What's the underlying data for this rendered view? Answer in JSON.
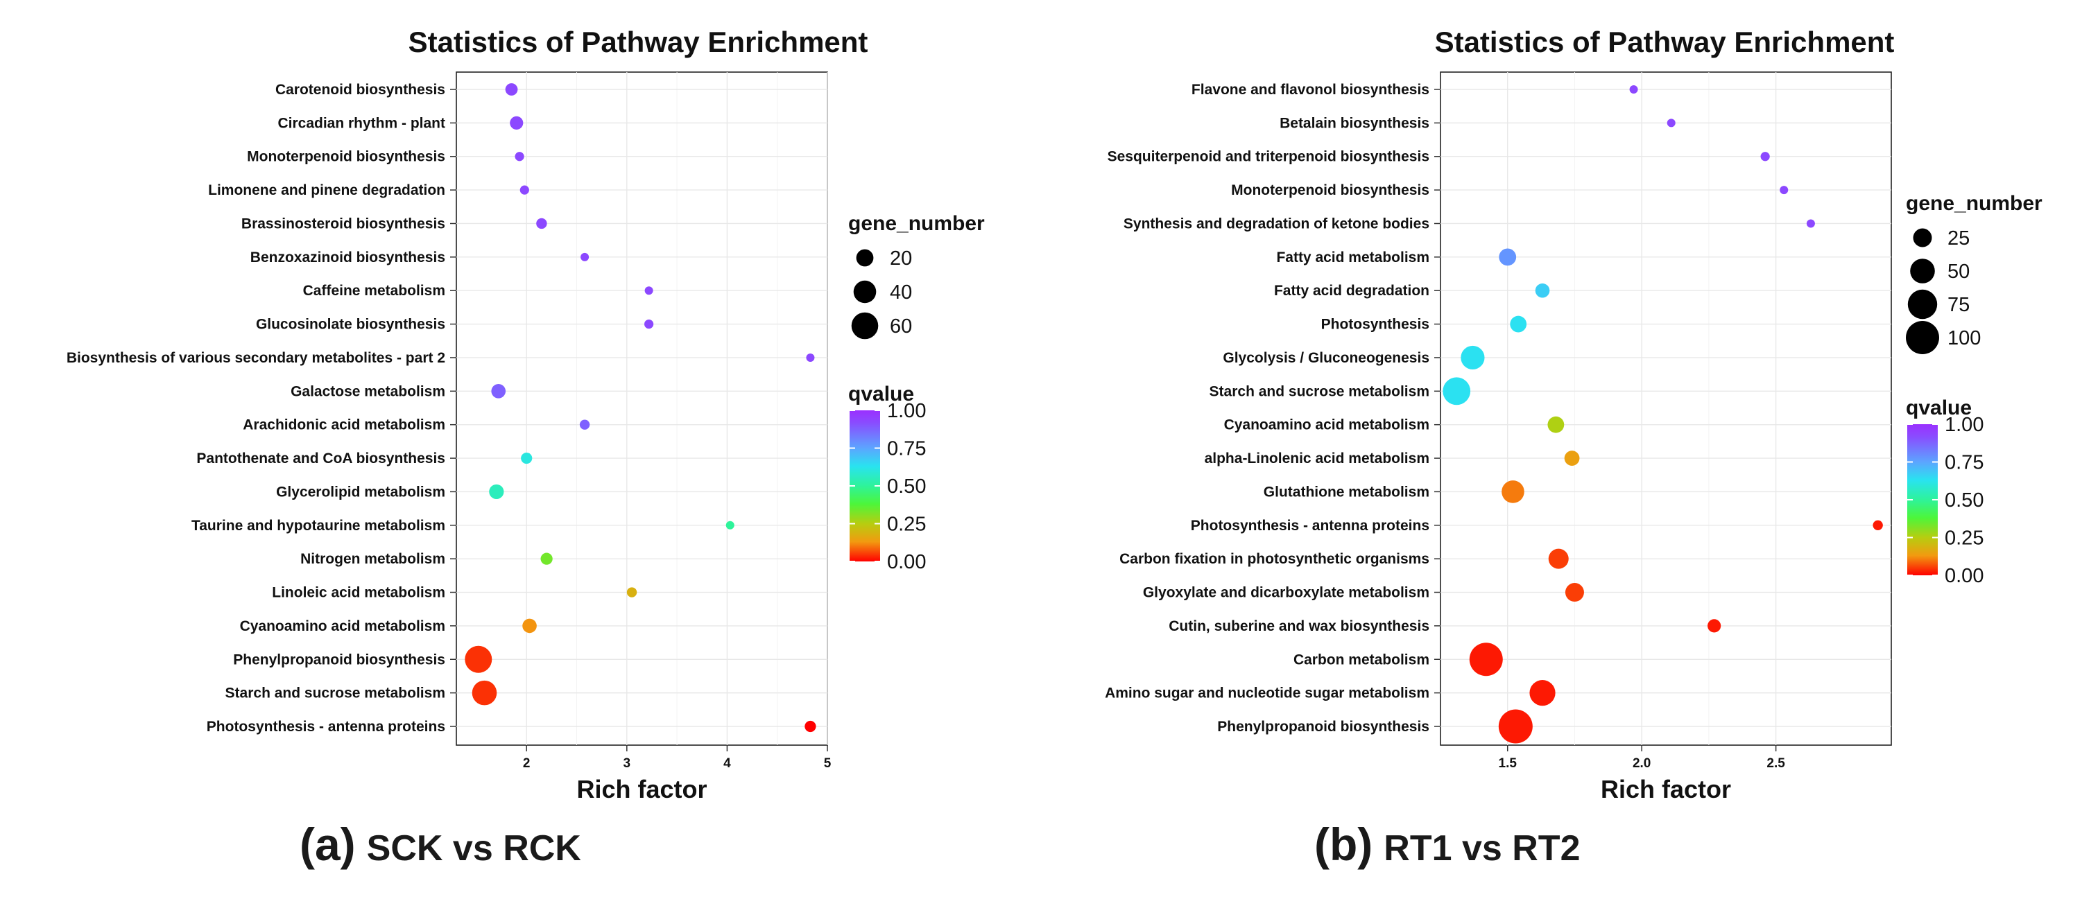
{
  "panels": [
    {
      "label": "(a)",
      "comparison": "SCK  vs RCK"
    },
    {
      "label": "(b)",
      "comparison": "RT1 vs RT2"
    }
  ],
  "chart_data": [
    {
      "type": "scatter",
      "title": "Statistics of Pathway Enrichment",
      "xlabel": "Rich factor",
      "ylabel": "",
      "xlim": [
        1.3,
        5.0
      ],
      "xticks": [
        2,
        3,
        4,
        5
      ],
      "xtick_labels": [
        "2",
        "3",
        "4",
        "5"
      ],
      "grid": true,
      "size_legend": {
        "title": "gene_number",
        "values": [
          20,
          40,
          60
        ],
        "labels": [
          "20",
          "40",
          "60"
        ]
      },
      "color_legend": {
        "title": "qvalue",
        "range": [
          0,
          1
        ],
        "ticks": [
          1.0,
          0.75,
          0.5,
          0.25,
          0.0
        ],
        "labels": [
          "1.00",
          "0.75",
          "0.50",
          "0.25",
          "0.00"
        ]
      },
      "points": [
        {
          "pathway": "Carotenoid biosynthesis",
          "rich_factor": 1.85,
          "gene_number": 8,
          "qvalue": 0.93
        },
        {
          "pathway": "Circadian rhythm - plant",
          "rich_factor": 1.9,
          "gene_number": 10,
          "qvalue": 0.93
        },
        {
          "pathway": "Monoterpenoid biosynthesis",
          "rich_factor": 1.93,
          "gene_number": 3,
          "qvalue": 0.93
        },
        {
          "pathway": "Limonene and pinene degradation",
          "rich_factor": 1.98,
          "gene_number": 3,
          "qvalue": 0.93
        },
        {
          "pathway": "Brassinosteroid biosynthesis",
          "rich_factor": 2.15,
          "gene_number": 5,
          "qvalue": 0.93
        },
        {
          "pathway": "Benzoxazinoid biosynthesis",
          "rich_factor": 2.58,
          "gene_number": 2,
          "qvalue": 0.93
        },
        {
          "pathway": "Caffeine metabolism",
          "rich_factor": 3.22,
          "gene_number": 2,
          "qvalue": 0.93
        },
        {
          "pathway": "Glucosinolate biosynthesis",
          "rich_factor": 3.22,
          "gene_number": 3,
          "qvalue": 0.93
        },
        {
          "pathway": "Biosynthesis of various secondary metabolites - part 2",
          "rich_factor": 4.83,
          "gene_number": 2,
          "qvalue": 0.93
        },
        {
          "pathway": "Galactose metabolism",
          "rich_factor": 1.72,
          "gene_number": 12,
          "qvalue": 0.88
        },
        {
          "pathway": "Arachidonic acid metabolism",
          "rich_factor": 2.58,
          "gene_number": 4,
          "qvalue": 0.88
        },
        {
          "pathway": "Pantothenate and CoA biosynthesis",
          "rich_factor": 2.0,
          "gene_number": 6,
          "qvalue": 0.6
        },
        {
          "pathway": "Glycerolipid metabolism",
          "rich_factor": 1.7,
          "gene_number": 13,
          "qvalue": 0.55
        },
        {
          "pathway": "Taurine and hypotaurine metabolism",
          "rich_factor": 4.03,
          "gene_number": 2,
          "qvalue": 0.5
        },
        {
          "pathway": "Nitrogen metabolism",
          "rich_factor": 2.2,
          "gene_number": 7,
          "qvalue": 0.33
        },
        {
          "pathway": "Linoleic acid metabolism",
          "rich_factor": 3.05,
          "gene_number": 4,
          "qvalue": 0.18
        },
        {
          "pathway": "Cyanoamino acid metabolism",
          "rich_factor": 2.03,
          "gene_number": 12,
          "qvalue": 0.12
        },
        {
          "pathway": "Phenylpropanoid biosynthesis",
          "rich_factor": 1.52,
          "gene_number": 62,
          "qvalue": 0.04
        },
        {
          "pathway": "Starch and sucrose metabolism",
          "rich_factor": 1.58,
          "gene_number": 50,
          "qvalue": 0.04
        },
        {
          "pathway": "Photosynthesis - antenna proteins",
          "rich_factor": 4.83,
          "gene_number": 6,
          "qvalue": 0.0
        }
      ]
    },
    {
      "type": "scatter",
      "title": "Statistics of Pathway Enrichment",
      "xlabel": "Rich factor",
      "ylabel": "",
      "xlim": [
        1.25,
        2.93
      ],
      "xticks": [
        1.5,
        2.0,
        2.5
      ],
      "xtick_labels": [
        "1.5",
        "2.0",
        "2.5"
      ],
      "grid": true,
      "size_legend": {
        "title": "gene_number",
        "values": [
          25,
          50,
          75,
          100
        ],
        "labels": [
          "25",
          "50",
          "75",
          "100"
        ]
      },
      "color_legend": {
        "title": "qvalue",
        "range": [
          0,
          1
        ],
        "ticks": [
          1.0,
          0.75,
          0.5,
          0.25,
          0.0
        ],
        "labels": [
          "1.00",
          "0.75",
          "0.50",
          "0.25",
          "0.00"
        ]
      },
      "points": [
        {
          "pathway": "Flavone and flavonol biosynthesis",
          "rich_factor": 1.97,
          "gene_number": 2,
          "qvalue": 0.93
        },
        {
          "pathway": "Betalain biosynthesis",
          "rich_factor": 2.11,
          "gene_number": 2,
          "qvalue": 0.93
        },
        {
          "pathway": "Sesquiterpenoid and triterpenoid biosynthesis",
          "rich_factor": 2.46,
          "gene_number": 3,
          "qvalue": 0.93
        },
        {
          "pathway": "Monoterpenoid biosynthesis",
          "rich_factor": 2.53,
          "gene_number": 2,
          "qvalue": 0.93
        },
        {
          "pathway": "Synthesis and degradation of ketone bodies",
          "rich_factor": 2.63,
          "gene_number": 2,
          "qvalue": 0.93
        },
        {
          "pathway": "Fatty acid metabolism",
          "rich_factor": 1.5,
          "gene_number": 20,
          "qvalue": 0.78
        },
        {
          "pathway": "Fatty acid degradation",
          "rich_factor": 1.63,
          "gene_number": 12,
          "qvalue": 0.67
        },
        {
          "pathway": "Photosynthesis",
          "rich_factor": 1.54,
          "gene_number": 18,
          "qvalue": 0.63
        },
        {
          "pathway": "Glycolysis / Gluconeogenesis",
          "rich_factor": 1.37,
          "gene_number": 45,
          "qvalue": 0.63
        },
        {
          "pathway": "Starch and sucrose metabolism",
          "rich_factor": 1.31,
          "gene_number": 65,
          "qvalue": 0.63
        },
        {
          "pathway": "Cyanoamino acid metabolism",
          "rich_factor": 1.68,
          "gene_number": 18,
          "qvalue": 0.26
        },
        {
          "pathway": "alpha-Linolenic acid metabolism",
          "rich_factor": 1.74,
          "gene_number": 14,
          "qvalue": 0.14
        },
        {
          "pathway": "Glutathione metabolism",
          "rich_factor": 1.52,
          "gene_number": 40,
          "qvalue": 0.1
        },
        {
          "pathway": "Photosynthesis - antenna proteins",
          "rich_factor": 2.88,
          "gene_number": 4,
          "qvalue": 0.02
        },
        {
          "pathway": "Carbon fixation in photosynthetic organisms",
          "rich_factor": 1.69,
          "gene_number": 30,
          "qvalue": 0.05
        },
        {
          "pathway": "Glyoxylate and dicarboxylate metabolism",
          "rich_factor": 1.75,
          "gene_number": 25,
          "qvalue": 0.05
        },
        {
          "pathway": "Cutin, suberine and wax biosynthesis",
          "rich_factor": 2.27,
          "gene_number": 10,
          "qvalue": 0.02
        },
        {
          "pathway": "Carbon metabolism",
          "rich_factor": 1.42,
          "gene_number": 100,
          "qvalue": 0.02
        },
        {
          "pathway": "Amino sugar and nucleotide sugar metabolism",
          "rich_factor": 1.63,
          "gene_number": 55,
          "qvalue": 0.02
        },
        {
          "pathway": "Phenylpropanoid biosynthesis",
          "rich_factor": 1.53,
          "gene_number": 105,
          "qvalue": 0.02
        }
      ]
    }
  ]
}
